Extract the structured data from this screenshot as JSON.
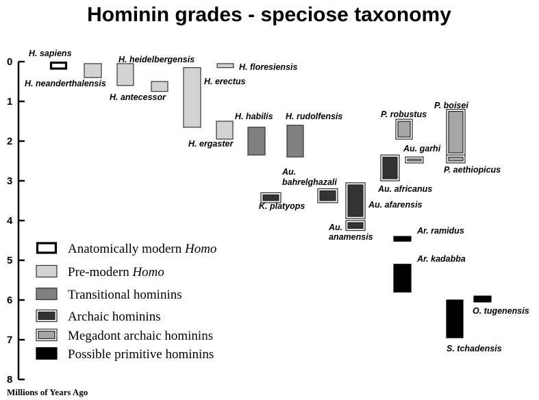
{
  "chart_data": {
    "type": "range-bar",
    "title": "Hominin grades - speciose taxonomy",
    "ylabel": "Millions of Years Ago",
    "ylim": [
      0,
      8
    ],
    "y_ticks": [
      "0",
      "1",
      "2",
      "3",
      "4",
      "5",
      "6",
      "7",
      "8"
    ],
    "y_inverted": true,
    "grid": false,
    "legend_position": "bottom-left",
    "grades": [
      {
        "key": "modern",
        "label": "Anatomically modern ",
        "label_italic": "Homo",
        "fill": "#ffffff",
        "stroke": "#000000",
        "style": "thick-outline"
      },
      {
        "key": "premodern",
        "label": "Pre-modern ",
        "label_italic": "Homo",
        "fill": "#d3d3d3",
        "stroke": "#333333",
        "style": "plain"
      },
      {
        "key": "transitional",
        "label": "Transitional hominins",
        "label_italic": "",
        "fill": "#808080",
        "stroke": "#333333",
        "style": "plain"
      },
      {
        "key": "archaic",
        "label": "Archaic hominins",
        "label_italic": "",
        "fill": "#333333",
        "stroke": "#333333",
        "style": "double-border"
      },
      {
        "key": "megadont",
        "label": "Megadont archaic hominins",
        "label_italic": "",
        "fill": "#a6a6a6",
        "stroke": "#333333",
        "style": "double-border"
      },
      {
        "key": "primitive",
        "label": "Possible primitive hominins",
        "label_italic": "",
        "fill": "#000000",
        "stroke": "#000000",
        "style": "plain"
      }
    ],
    "species": [
      {
        "name": "H. sapiens",
        "grade": "modern",
        "start": 0.0,
        "end": 0.2
      },
      {
        "name": "H. neanderthalensis",
        "grade": "premodern",
        "start": 0.05,
        "end": 0.4
      },
      {
        "name": "H. heidelbergensis",
        "grade": "premodern",
        "start": 0.05,
        "end": 0.6
      },
      {
        "name": "H. antecessor",
        "grade": "premodern",
        "start": 0.5,
        "end": 0.75
      },
      {
        "name": "H. erectus",
        "grade": "premodern",
        "start": 0.15,
        "end": 1.65
      },
      {
        "name": "H. floresiensis",
        "grade": "premodern",
        "start": 0.05,
        "end": 0.15
      },
      {
        "name": "H. ergaster",
        "grade": "premodern",
        "start": 1.5,
        "end": 1.95
      },
      {
        "name": "H. habilis",
        "grade": "transitional",
        "start": 1.65,
        "end": 2.35
      },
      {
        "name": "H. rudolfensis",
        "grade": "transitional",
        "start": 1.6,
        "end": 2.4
      },
      {
        "name": "K. platyops",
        "grade": "archaic",
        "start": 3.3,
        "end": 3.55
      },
      {
        "name": "Au. bahrelghazali",
        "grade": "archaic",
        "start": 3.2,
        "end": 3.55
      },
      {
        "name": "Au. afarensis",
        "grade": "archaic",
        "start": 3.05,
        "end": 3.95
      },
      {
        "name": "Au. anamensis",
        "grade": "archaic",
        "start": 4.0,
        "end": 4.25
      },
      {
        "name": "Au. africanus",
        "grade": "archaic",
        "start": 2.35,
        "end": 3.0
      },
      {
        "name": "Au. garhi",
        "grade": "megadont",
        "start": 2.4,
        "end": 2.55
      },
      {
        "name": "P. robustus",
        "grade": "megadont",
        "start": 1.45,
        "end": 1.95
      },
      {
        "name": "P. boisei",
        "grade": "megadont",
        "start": 1.2,
        "end": 2.35
      },
      {
        "name": "P. aethiopicus",
        "grade": "megadont",
        "start": 2.35,
        "end": 2.55
      },
      {
        "name": "Ar. ramidus",
        "grade": "primitive",
        "start": 4.4,
        "end": 4.52
      },
      {
        "name": "Ar. kadabba",
        "grade": "primitive",
        "start": 5.1,
        "end": 5.8
      },
      {
        "name": "O. tugenensis",
        "grade": "primitive",
        "start": 5.9,
        "end": 6.05
      },
      {
        "name": "S. tchadensis",
        "grade": "primitive",
        "start": 6.0,
        "end": 6.95
      }
    ]
  }
}
